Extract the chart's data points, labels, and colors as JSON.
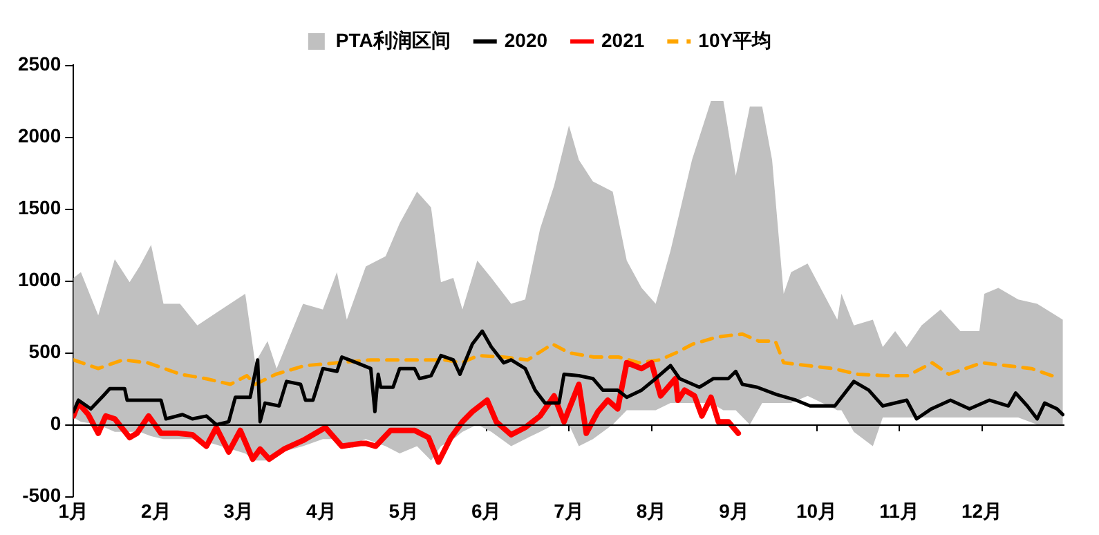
{
  "chart_data": {
    "type": "line",
    "legend": "top",
    "grid": false,
    "marker": "none",
    "xlim": [
      1,
      13
    ],
    "ylim": [
      -500,
      2500
    ],
    "xticks": [
      {
        "value": 1,
        "label": "1月"
      },
      {
        "value": 2,
        "label": "2月"
      },
      {
        "value": 3,
        "label": "3月"
      },
      {
        "value": 4,
        "label": "4月"
      },
      {
        "value": 5,
        "label": "5月"
      },
      {
        "value": 6,
        "label": "6月"
      },
      {
        "value": 7,
        "label": "7月"
      },
      {
        "value": 8,
        "label": "8月"
      },
      {
        "value": 9,
        "label": "9月"
      },
      {
        "value": 10,
        "label": "10月"
      },
      {
        "value": 11,
        "label": "11月"
      },
      {
        "value": 12,
        "label": "12月"
      }
    ],
    "yticks": [
      -500,
      0,
      500,
      1000,
      1500,
      2000,
      2500
    ],
    "ref_lines": [
      {
        "axis": "y",
        "value": 0,
        "color": "#000000"
      }
    ],
    "series": [
      {
        "name": "PTA利润区间",
        "type": "area",
        "color": "#c0c0c0",
        "x": [
          1.0,
          1.09,
          1.3,
          1.5,
          1.68,
          1.8,
          1.94,
          2.09,
          2.29,
          2.5,
          2.79,
          3.08,
          3.2,
          3.35,
          3.46,
          3.78,
          4.02,
          4.19,
          4.31,
          4.54,
          4.78,
          4.95,
          5.16,
          5.33,
          5.45,
          5.6,
          5.71,
          5.89,
          6.06,
          6.3,
          6.47,
          6.65,
          6.82,
          7.0,
          7.12,
          7.29,
          7.53,
          7.7,
          7.88,
          8.05,
          8.23,
          8.49,
          8.72,
          8.87,
          9.02,
          9.19,
          9.34,
          9.46,
          9.6,
          9.69,
          9.89,
          10.25,
          10.3,
          10.45,
          10.68,
          10.8,
          10.95,
          11.09,
          11.27,
          11.5,
          11.74,
          11.97,
          12.03,
          12.2,
          12.44,
          12.67,
          12.98
        ],
        "values": [
          null,
          null,
          null,
          null,
          null,
          null,
          null,
          null,
          null,
          null,
          null,
          null,
          null,
          null,
          null,
          null,
          null,
          null,
          null,
          null,
          null,
          null,
          null,
          null,
          null,
          null,
          null,
          null,
          null,
          null,
          null,
          null,
          null,
          null,
          null,
          null,
          null,
          null,
          null,
          null,
          null,
          null,
          null,
          null,
          null,
          null,
          null,
          null,
          null,
          null,
          null,
          null,
          null,
          null,
          null,
          null,
          null,
          null,
          null,
          null,
          null,
          null,
          null,
          null,
          null,
          null,
          null
        ],
        "upper": [
          1020,
          1060,
          760,
          1150,
          990,
          1100,
          1250,
          840,
          840,
          690,
          800,
          910,
          430,
          580,
          390,
          840,
          800,
          1060,
          730,
          1100,
          1170,
          1400,
          1620,
          1510,
          990,
          1020,
          800,
          1140,
          1020,
          840,
          870,
          1360,
          1660,
          2080,
          1840,
          1690,
          1620,
          1140,
          950,
          840,
          1210,
          1840,
          2250,
          2250,
          1730,
          2210,
          2210,
          1840,
          910,
          1060,
          1120,
          730,
          910,
          690,
          730,
          540,
          650,
          540,
          690,
          800,
          650,
          650,
          910,
          950,
          870,
          840,
          730
        ],
        "lower": [
          50,
          20,
          0,
          -50,
          -50,
          -50,
          -80,
          -100,
          -100,
          -100,
          -150,
          -200,
          -250,
          -250,
          -200,
          -150,
          -100,
          -100,
          -150,
          -100,
          -150,
          -200,
          -150,
          -250,
          -150,
          -100,
          -50,
          0,
          -50,
          -150,
          -100,
          -50,
          0,
          0,
          -150,
          -100,
          0,
          100,
          100,
          100,
          150,
          150,
          150,
          100,
          100,
          0,
          150,
          150,
          150,
          150,
          200,
          100,
          100,
          -50,
          -150,
          50,
          50,
          50,
          50,
          50,
          50,
          50,
          50,
          50,
          50,
          0,
          0
        ]
      },
      {
        "name": "2020",
        "type": "line",
        "color": "#000000",
        "x": [
          1.0,
          1.06,
          1.21,
          1.36,
          1.44,
          1.62,
          1.65,
          2.06,
          2.12,
          2.32,
          2.44,
          2.61,
          2.73,
          2.88,
          2.96,
          3.14,
          3.23,
          3.26,
          3.32,
          3.49,
          3.58,
          3.75,
          3.81,
          3.9,
          4.02,
          4.19,
          4.25,
          4.43,
          4.6,
          4.65,
          4.69,
          4.72,
          4.87,
          4.95,
          5.13,
          5.19,
          5.33,
          5.45,
          5.6,
          5.68,
          5.83,
          5.95,
          6.06,
          6.21,
          6.3,
          6.47,
          6.59,
          6.71,
          6.88,
          6.94,
          7.12,
          7.29,
          7.41,
          7.59,
          7.7,
          7.88,
          8.05,
          8.23,
          8.34,
          8.58,
          8.75,
          8.93,
          9.02,
          9.1,
          9.28,
          9.51,
          9.75,
          9.92,
          10.22,
          10.45,
          10.63,
          10.8,
          11.09,
          11.21,
          11.39,
          11.62,
          11.85,
          12.09,
          12.32,
          12.41,
          12.55,
          12.67,
          12.76,
          12.91,
          12.98
        ],
        "values": [
          90,
          170,
          110,
          200,
          250,
          250,
          170,
          170,
          40,
          70,
          40,
          60,
          0,
          20,
          190,
          190,
          450,
          20,
          150,
          130,
          300,
          280,
          170,
          170,
          390,
          370,
          470,
          430,
          390,
          90,
          350,
          260,
          260,
          390,
          390,
          320,
          340,
          480,
          450,
          350,
          560,
          650,
          540,
          430,
          450,
          390,
          240,
          150,
          150,
          350,
          340,
          320,
          240,
          240,
          190,
          240,
          320,
          410,
          320,
          260,
          320,
          320,
          370,
          280,
          260,
          210,
          170,
          130,
          130,
          300,
          240,
          130,
          170,
          40,
          110,
          170,
          110,
          170,
          130,
          220,
          130,
          40,
          150,
          110,
          70
        ]
      },
      {
        "name": "2021",
        "type": "line",
        "color": "#ff0000",
        "x": [
          1.0,
          1.06,
          1.18,
          1.3,
          1.39,
          1.5,
          1.68,
          1.77,
          1.91,
          2.06,
          2.26,
          2.44,
          2.61,
          2.73,
          2.88,
          3.02,
          3.17,
          3.26,
          3.37,
          3.55,
          3.78,
          4.05,
          4.25,
          4.49,
          4.54,
          4.66,
          4.84,
          5.13,
          5.3,
          5.42,
          5.57,
          5.71,
          5.83,
          6.01,
          6.12,
          6.3,
          6.47,
          6.65,
          6.82,
          6.94,
          7.12,
          7.21,
          7.35,
          7.47,
          7.59,
          7.7,
          7.88,
          8.0,
          8.11,
          8.29,
          8.32,
          8.4,
          8.52,
          8.61,
          8.72,
          8.81,
          8.93,
          9.05
        ],
        "values": [
          60,
          150,
          70,
          -60,
          60,
          40,
          -90,
          -60,
          60,
          -60,
          -60,
          -70,
          -150,
          -20,
          -190,
          -40,
          -240,
          -170,
          -240,
          -170,
          -110,
          -20,
          -150,
          -130,
          -130,
          -150,
          -40,
          -40,
          -90,
          -260,
          -90,
          20,
          90,
          170,
          20,
          -70,
          -20,
          60,
          200,
          20,
          280,
          -60,
          90,
          170,
          110,
          430,
          390,
          430,
          200,
          320,
          170,
          240,
          200,
          60,
          190,
          20,
          20,
          -60
        ]
      },
      {
        "name": "10Y平均",
        "type": "line",
        "line_style": "dashed",
        "color": "#ffa500",
        "x": [
          1.0,
          1.3,
          1.6,
          1.9,
          2.3,
          2.6,
          2.9,
          3.1,
          3.2,
          3.45,
          3.8,
          4.2,
          4.6,
          4.8,
          5.2,
          5.5,
          5.7,
          5.9,
          6.2,
          6.5,
          6.8,
          7.0,
          7.3,
          7.6,
          7.85,
          8.1,
          8.3,
          8.5,
          8.8,
          9.1,
          9.3,
          9.5,
          9.6,
          9.9,
          10.2,
          10.5,
          10.85,
          11.1,
          11.4,
          11.6,
          12.0,
          12.3,
          12.6,
          12.85
        ],
        "values": [
          450,
          390,
          450,
          430,
          350,
          320,
          280,
          340,
          280,
          350,
          410,
          430,
          450,
          450,
          450,
          450,
          430,
          480,
          470,
          450,
          560,
          500,
          470,
          470,
          430,
          450,
          500,
          560,
          610,
          630,
          580,
          580,
          430,
          410,
          390,
          350,
          340,
          340,
          430,
          350,
          430,
          410,
          390,
          340
        ]
      }
    ]
  }
}
